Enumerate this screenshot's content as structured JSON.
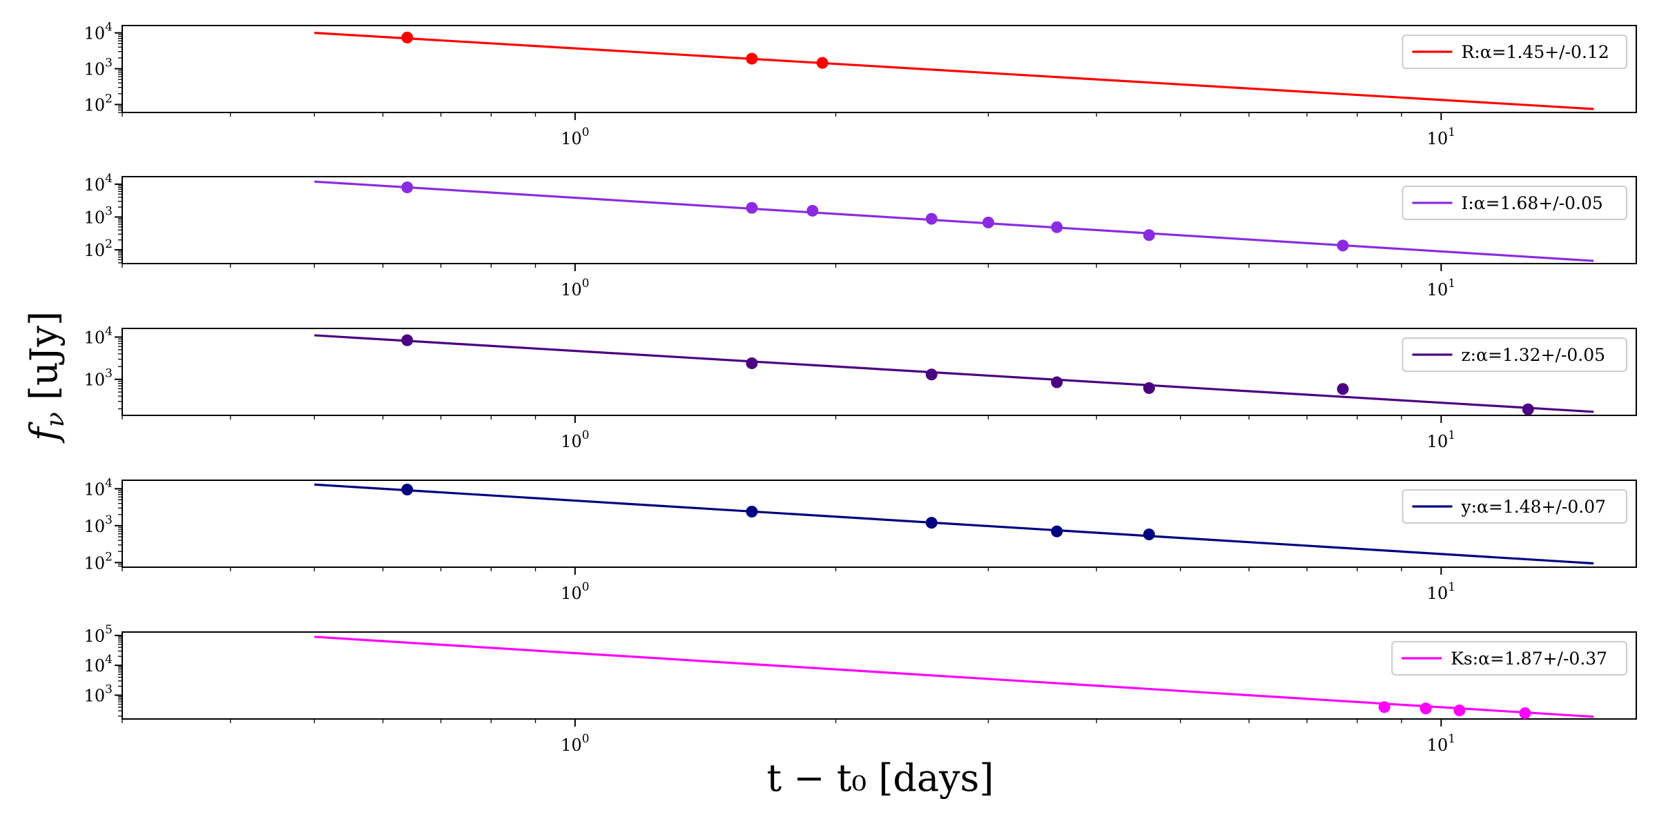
{
  "chart_data": {
    "type": "scatter",
    "xlabel": "t − t₀ [days]",
    "ylabel": "f_ν [uJy]",
    "xscale": "log",
    "yscale": "log",
    "xlim": [
      0.3,
      16.8
    ],
    "x_ticks": [
      {
        "value": 1,
        "base": "10",
        "exp": "0"
      },
      {
        "value": 10,
        "base": "10",
        "exp": "1"
      }
    ],
    "panels": [
      {
        "band": "R",
        "legend": "R:α=1.45+/-0.12",
        "color": "#ff0000",
        "ylim": [
          60,
          16000
        ],
        "y_ticks": [
          {
            "value": 10000,
            "base": "10",
            "exp": "4"
          },
          {
            "value": 1000,
            "base": "10",
            "exp": "3"
          },
          {
            "value": 100,
            "base": "10",
            "exp": "2"
          }
        ],
        "fit_line": {
          "x": [
            0.5,
            15
          ],
          "y": [
            10000,
            75
          ]
        },
        "points": [
          {
            "x": 0.64,
            "y": 7400
          },
          {
            "x": 1.6,
            "y": 1900
          },
          {
            "x": 1.93,
            "y": 1450
          }
        ]
      },
      {
        "band": "I",
        "legend": "I:α=1.68+/-0.05",
        "color": "#8a2be2",
        "ylim": [
          38,
          17000
        ],
        "y_ticks": [
          {
            "value": 10000,
            "base": "10",
            "exp": "4"
          },
          {
            "value": 1000,
            "base": "10",
            "exp": "3"
          },
          {
            "value": 100,
            "base": "10",
            "exp": "2"
          }
        ],
        "fit_line": {
          "x": [
            0.5,
            15
          ],
          "y": [
            12000,
            46
          ]
        },
        "points": [
          {
            "x": 0.64,
            "y": 8000
          },
          {
            "x": 1.6,
            "y": 1900
          },
          {
            "x": 1.88,
            "y": 1550
          },
          {
            "x": 2.58,
            "y": 880
          },
          {
            "x": 3.0,
            "y": 680
          },
          {
            "x": 3.6,
            "y": 490
          },
          {
            "x": 4.6,
            "y": 280
          },
          {
            "x": 7.7,
            "y": 135
          }
        ]
      },
      {
        "band": "z",
        "legend": "z:α=1.32+/-0.05",
        "color": "#4b0082",
        "ylim": [
          140,
          16000
        ],
        "y_ticks": [
          {
            "value": 10000,
            "base": "10",
            "exp": "4"
          },
          {
            "value": 1000,
            "base": "10",
            "exp": "3"
          }
        ],
        "fit_line": {
          "x": [
            0.5,
            15
          ],
          "y": [
            11000,
            170
          ]
        },
        "points": [
          {
            "x": 0.64,
            "y": 8400
          },
          {
            "x": 1.6,
            "y": 2400
          },
          {
            "x": 2.58,
            "y": 1300
          },
          {
            "x": 3.6,
            "y": 850
          },
          {
            "x": 4.6,
            "y": 620
          },
          {
            "x": 7.7,
            "y": 590
          },
          {
            "x": 12.6,
            "y": 195
          }
        ]
      },
      {
        "band": "y",
        "legend": "y:α=1.48+/-0.07",
        "color": "#000080",
        "ylim": [
          75,
          17000
        ],
        "y_ticks": [
          {
            "value": 10000,
            "base": "10",
            "exp": "4"
          },
          {
            "value": 1000,
            "base": "10",
            "exp": "3"
          },
          {
            "value": 100,
            "base": "10",
            "exp": "2"
          }
        ],
        "fit_line": {
          "x": [
            0.5,
            15
          ],
          "y": [
            13000,
            95
          ]
        },
        "points": [
          {
            "x": 0.64,
            "y": 9500
          },
          {
            "x": 1.6,
            "y": 2400
          },
          {
            "x": 2.58,
            "y": 1200
          },
          {
            "x": 3.6,
            "y": 700
          },
          {
            "x": 4.6,
            "y": 580
          }
        ]
      },
      {
        "band": "Ks",
        "legend": "Ks:α=1.87+/-0.37",
        "color": "#ff00ff",
        "ylim": [
          160,
          130000
        ],
        "y_ticks": [
          {
            "value": 100000,
            "base": "10",
            "exp": "5"
          },
          {
            "value": 10000,
            "base": "10",
            "exp": "4"
          },
          {
            "value": 1000,
            "base": "10",
            "exp": "3"
          }
        ],
        "fit_line": {
          "x": [
            0.5,
            15
          ],
          "y": [
            90000,
            190
          ]
        },
        "points": [
          {
            "x": 8.6,
            "y": 400
          },
          {
            "x": 9.6,
            "y": 360
          },
          {
            "x": 10.5,
            "y": 310
          },
          {
            "x": 12.5,
            "y": 250
          }
        ]
      }
    ]
  }
}
